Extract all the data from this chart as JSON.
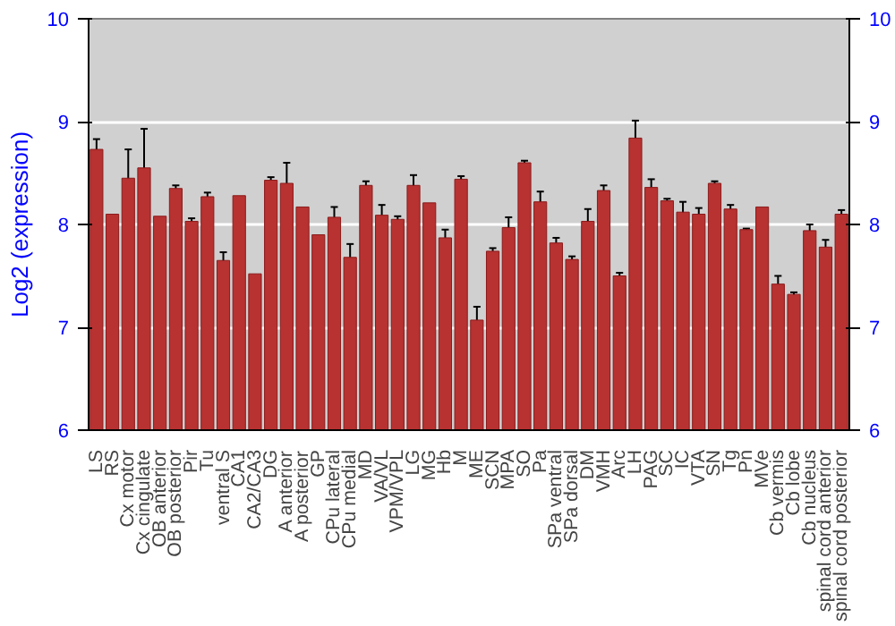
{
  "chart_data": {
    "type": "bar",
    "ylabel": "Log2 (expression)",
    "categories": [
      "LS",
      "RS",
      "Cx motor",
      "Cx cingulate",
      "OB anterior",
      "OB posterior",
      "Pir",
      "Tu",
      "ventral S",
      "CA1",
      "CA2/CA3",
      "DG",
      "A anterior",
      "A posterior",
      "GP",
      "CPu lateral",
      "CPu medial",
      "MD",
      "VA/VL",
      "VPM/VPL",
      "LG",
      "MG",
      "Hb",
      "M",
      "ME",
      "SCN",
      "MPA",
      "SO",
      "Pa",
      "SPa ventral",
      "SPa dorsal",
      "DM",
      "VMH",
      "Arc",
      "LH",
      "PAG",
      "SC",
      "IC",
      "VTA",
      "SN",
      "Tg",
      "Pn",
      "MVe",
      "Cb vermis",
      "Cb lobe",
      "Cb nucleus",
      "spinal cord anterior",
      "spinal cord posterior"
    ],
    "values": [
      8.73,
      8.1,
      8.45,
      8.55,
      8.08,
      8.35,
      8.03,
      8.27,
      7.65,
      8.28,
      7.52,
      8.43,
      8.4,
      8.17,
      7.9,
      8.07,
      7.68,
      8.38,
      8.09,
      8.05,
      8.38,
      8.21,
      7.87,
      8.44,
      7.07,
      7.74,
      7.97,
      8.6,
      8.22,
      7.82,
      7.66,
      8.03,
      8.33,
      7.5,
      8.84,
      8.36,
      8.23,
      8.12,
      8.1,
      8.4,
      8.15,
      7.95,
      8.17,
      7.42,
      7.32,
      7.94,
      7.78,
      8.1
    ],
    "errors": [
      0.1,
      null,
      0.28,
      0.38,
      null,
      0.03,
      0.03,
      0.04,
      0.08,
      null,
      null,
      0.03,
      0.2,
      null,
      null,
      0.1,
      0.13,
      0.04,
      0.1,
      0.03,
      0.1,
      null,
      0.08,
      0.03,
      0.13,
      0.03,
      0.1,
      0.02,
      0.1,
      0.05,
      0.03,
      0.12,
      0.05,
      0.03,
      0.17,
      0.08,
      0.02,
      0.1,
      0.06,
      0.02,
      0.04,
      0.01,
      null,
      0.08,
      0.02,
      0.06,
      0.07,
      0.04
    ],
    "color": "#b83232",
    "ylim": [
      6,
      10
    ],
    "yticks": [
      6,
      7,
      8,
      9,
      10
    ],
    "y2lim": [
      6,
      10
    ],
    "y2ticks": [
      6,
      7,
      8,
      9,
      10
    ],
    "grid": "y"
  }
}
